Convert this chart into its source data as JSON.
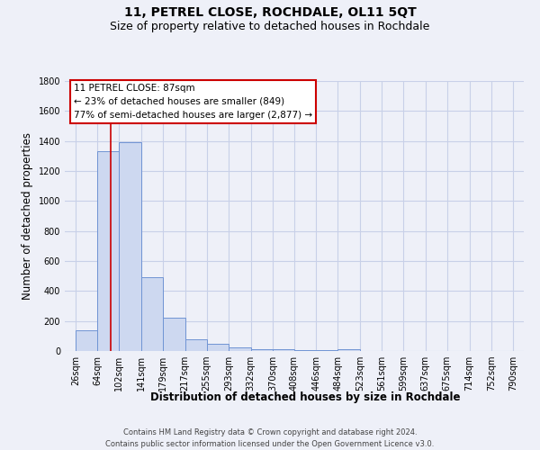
{
  "title": "11, PETREL CLOSE, ROCHDALE, OL11 5QT",
  "subtitle": "Size of property relative to detached houses in Rochdale",
  "xlabel": "Distribution of detached houses by size in Rochdale",
  "ylabel": "Number of detached properties",
  "footer_line1": "Contains HM Land Registry data © Crown copyright and database right 2024.",
  "footer_line2": "Contains public sector information licensed under the Open Government Licence v3.0.",
  "bin_labels": [
    "26sqm",
    "64sqm",
    "102sqm",
    "141sqm",
    "179sqm",
    "217sqm",
    "255sqm",
    "293sqm",
    "332sqm",
    "370sqm",
    "408sqm",
    "446sqm",
    "484sqm",
    "523sqm",
    "561sqm",
    "599sqm",
    "637sqm",
    "675sqm",
    "714sqm",
    "752sqm",
    "790sqm"
  ],
  "bin_edges": [
    26,
    64,
    102,
    141,
    179,
    217,
    255,
    293,
    332,
    370,
    408,
    446,
    484,
    523,
    561,
    599,
    637,
    675,
    714,
    752,
    790
  ],
  "bar_heights": [
    140,
    1330,
    1390,
    490,
    225,
    80,
    50,
    25,
    15,
    10,
    5,
    5,
    10,
    0,
    0,
    0,
    0,
    0,
    0,
    0
  ],
  "bar_color": "#cdd8f0",
  "bar_edge_color": "#7094d4",
  "grid_color": "#c8d0e8",
  "background_color": "#eef0f8",
  "property_size": 87,
  "redline_color": "#cc0000",
  "annotation_line1": "11 PETREL CLOSE: 87sqm",
  "annotation_line2": "← 23% of detached houses are smaller (849)",
  "annotation_line3": "77% of semi-detached houses are larger (2,877) →",
  "annotation_box_color": "#cc0000",
  "annotation_bg": "#ffffff",
  "ylim": [
    0,
    1800
  ],
  "yticks": [
    0,
    200,
    400,
    600,
    800,
    1000,
    1200,
    1400,
    1600,
    1800
  ],
  "title_fontsize": 10,
  "subtitle_fontsize": 9,
  "axis_label_fontsize": 8.5,
  "tick_fontsize": 7,
  "annotation_fontsize": 7.5,
  "footer_fontsize": 6
}
